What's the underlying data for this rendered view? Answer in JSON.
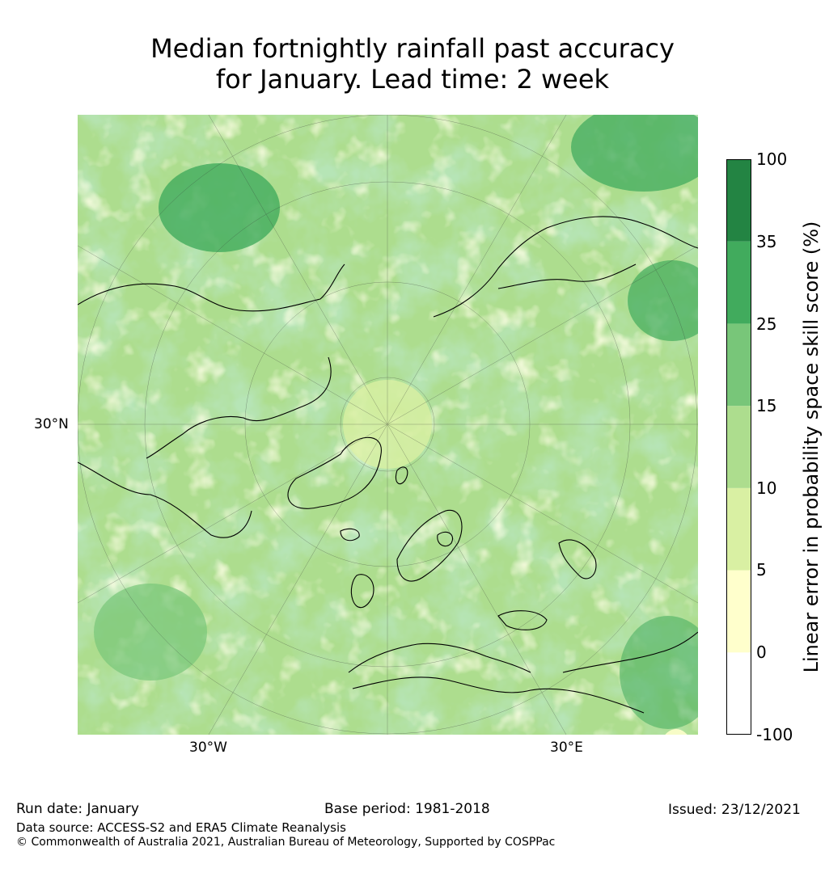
{
  "title_line1": "Median fortnightly rainfall past accuracy",
  "title_line2": "for January. Lead time: 2 week",
  "map_ticks": {
    "lat_30n": "30°N",
    "lon_30w": "30°W",
    "lon_30e": "30°E"
  },
  "colorbar": {
    "label": "Linear error in probability space skill score (%)",
    "ticks": [
      "-100",
      "0",
      "5",
      "10",
      "15",
      "25",
      "35",
      "100"
    ],
    "colors": [
      "#ffffff",
      "#ffffcc",
      "#d9f0a3",
      "#addd8e",
      "#78c679",
      "#41ab5d",
      "#238443"
    ]
  },
  "footer": {
    "run_date": "Run date: January",
    "base_period": "Base period: 1981-2018",
    "issued": "Issued: 23/12/2021",
    "data_source": "Data source: ACCESS-S2 and ERA5 Climate Reanalysis",
    "copyright": "© Commonwealth of Australia 2021, Australian Bureau of Meteorology, Supported by COSPPac"
  }
}
